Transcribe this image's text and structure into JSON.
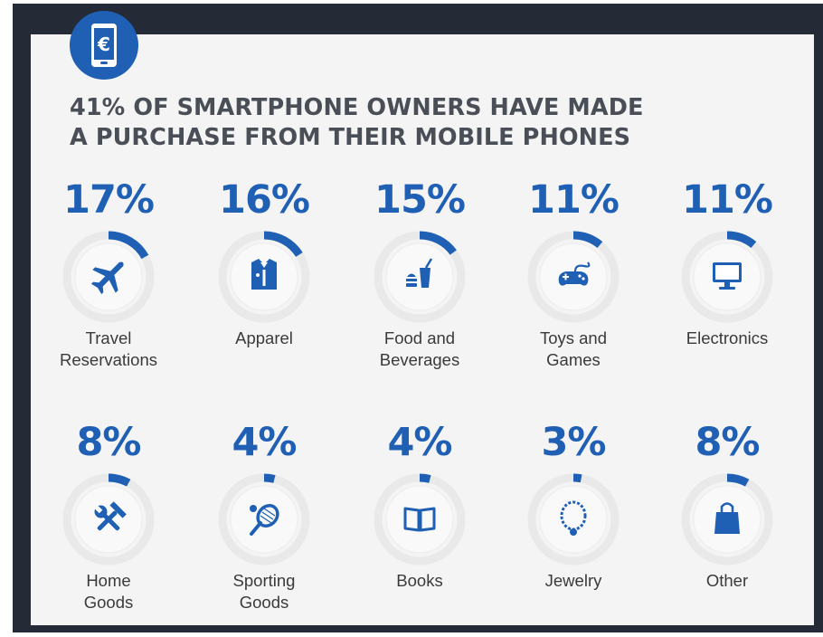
{
  "title_lines": [
    "41% OF SMARTPHONE OWNERS HAVE MADE",
    "A PURCHASE FROM THEIR MOBILE PHONES"
  ],
  "colors": {
    "accent": "#1f5fb4",
    "ring_track": "#e9e9e9",
    "frame": "#242b37",
    "card": "#f4f4f4"
  },
  "header_icon": "euro-smartphone-icon",
  "chart_data": {
    "type": "bar",
    "title": "41% OF SMARTPHONE OWNERS HAVE MADE A PURCHASE FROM THEIR MOBILE PHONES",
    "categories": [
      "Travel Reservations",
      "Apparel",
      "Food and Beverages",
      "Toys and Games",
      "Electronics",
      "Home Goods",
      "Sporting Goods",
      "Books",
      "Jewelry",
      "Other"
    ],
    "values": [
      17,
      16,
      15,
      11,
      11,
      8,
      4,
      4,
      3,
      8
    ],
    "unit": "%"
  },
  "items": [
    {
      "pct": "17%",
      "value": 17,
      "label_lines": [
        "Travel",
        "Reservations"
      ],
      "icon": "airplane-icon"
    },
    {
      "pct": "16%",
      "value": 16,
      "label_lines": [
        "Apparel"
      ],
      "icon": "shirt-icon"
    },
    {
      "pct": "15%",
      "value": 15,
      "label_lines": [
        "Food and",
        "Beverages"
      ],
      "icon": "burger-drink-icon"
    },
    {
      "pct": "11%",
      "value": 11,
      "label_lines": [
        "Toys and",
        "Games"
      ],
      "icon": "game-controller-icon"
    },
    {
      "pct": "11%",
      "value": 11,
      "label_lines": [
        "Electronics"
      ],
      "icon": "monitor-icon"
    },
    {
      "pct": "8%",
      "value": 8,
      "label_lines": [
        "Home",
        "Goods"
      ],
      "icon": "tools-icon"
    },
    {
      "pct": "4%",
      "value": 4,
      "label_lines": [
        "Sporting",
        "Goods"
      ],
      "icon": "tennis-racket-icon"
    },
    {
      "pct": "4%",
      "value": 4,
      "label_lines": [
        "Books"
      ],
      "icon": "book-icon"
    },
    {
      "pct": "3%",
      "value": 3,
      "label_lines": [
        "Jewelry"
      ],
      "icon": "necklace-icon"
    },
    {
      "pct": "8%",
      "value": 8,
      "label_lines": [
        "Other"
      ],
      "icon": "shopping-bag-icon"
    }
  ]
}
